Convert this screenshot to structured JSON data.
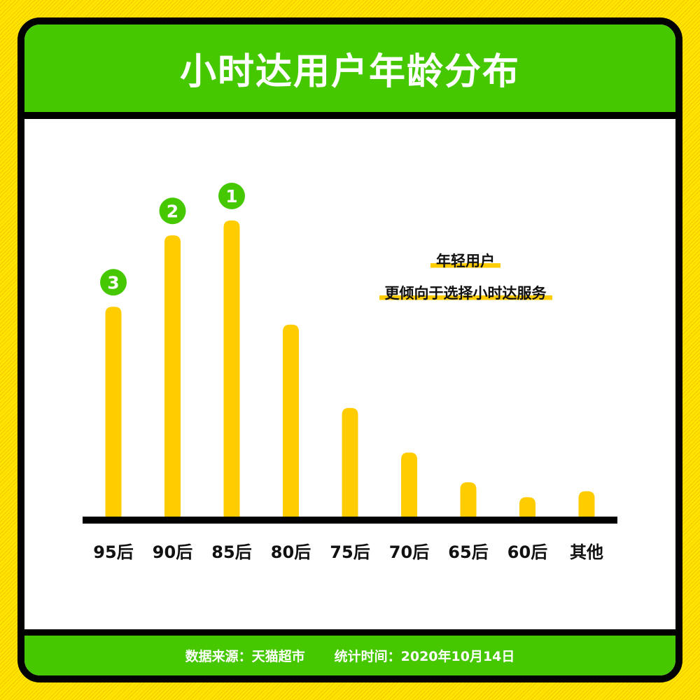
{
  "title": "小时达用户年龄分布",
  "annotation": [
    "年轻用户",
    "更倾向于选择小时达服务"
  ],
  "footer": {
    "source": "数据来源：天猫超市",
    "date": "统计时间：2020年10月14日"
  },
  "colors": {
    "bar": "#ffcc00",
    "header": "#46c800",
    "badge": "#46c800",
    "border": "#000000"
  },
  "chart_data": {
    "type": "bar",
    "title": "小时达用户年龄分布",
    "categories": [
      "95后",
      "90后",
      "85后",
      "80后",
      "75后",
      "70后",
      "65后",
      "60后",
      "其他"
    ],
    "values": [
      71,
      95,
      100,
      65,
      37,
      22,
      12,
      7,
      9
    ],
    "value_scale": "relative (no axis printed)",
    "rank_badges": [
      {
        "category": "85后",
        "rank": "1"
      },
      {
        "category": "90后",
        "rank": "2"
      },
      {
        "category": "95后",
        "rank": "3"
      }
    ],
    "xlabel": "",
    "ylabel": "",
    "grid": false,
    "legend": "none"
  }
}
